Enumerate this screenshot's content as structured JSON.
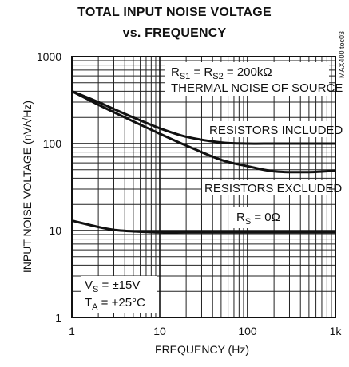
{
  "chart_data": {
    "type": "line",
    "title": "TOTAL INPUT NOISE VOLTAGE",
    "subtitle": "vs. FREQUENCY",
    "xlabel": "FREQUENCY (Hz)",
    "ylabel": "INPUT NOISE VOLTAGE (nV/√Hz)",
    "x_scale": "log",
    "y_scale": "log",
    "xlim": [
      1,
      1000
    ],
    "ylim": [
      1,
      1000
    ],
    "grid": true,
    "x_ticks": [
      "1",
      "10",
      "100",
      "1k"
    ],
    "y_ticks": [
      "1000",
      "100",
      "10",
      "1"
    ],
    "series": [
      {
        "name": "RESISTORS INCLUDED",
        "x": [
          1,
          2,
          3,
          5,
          10,
          20,
          50,
          100,
          200,
          500,
          1000
        ],
        "y": [
          400,
          300,
          250,
          200,
          150,
          120,
          103,
          100,
          100,
          100,
          100
        ]
      },
      {
        "name": "RESISTORS EXCLUDED",
        "x": [
          1,
          2,
          3,
          5,
          10,
          20,
          50,
          100,
          200,
          500,
          1000
        ],
        "y": [
          400,
          280,
          230,
          180,
          130,
          95,
          65,
          55,
          48,
          47,
          49
        ]
      },
      {
        "name": "RS = 0Ω",
        "x": [
          1,
          2,
          3,
          5,
          10,
          20,
          50,
          100,
          200,
          500,
          1000
        ],
        "y": [
          13,
          11,
          10.2,
          9.8,
          9.5,
          9.5,
          9.5,
          9.5,
          9.5,
          9.5,
          9.5
        ]
      }
    ],
    "annotations": {
      "source_resistance": "RS1 = RS2 = 200kΩ",
      "thermal_noise": "THERMAL NOISE OF SOURCE",
      "supply": "VS = ±15V",
      "temperature": "TA = +25°C",
      "part_code": "MAX400 toc03"
    }
  }
}
